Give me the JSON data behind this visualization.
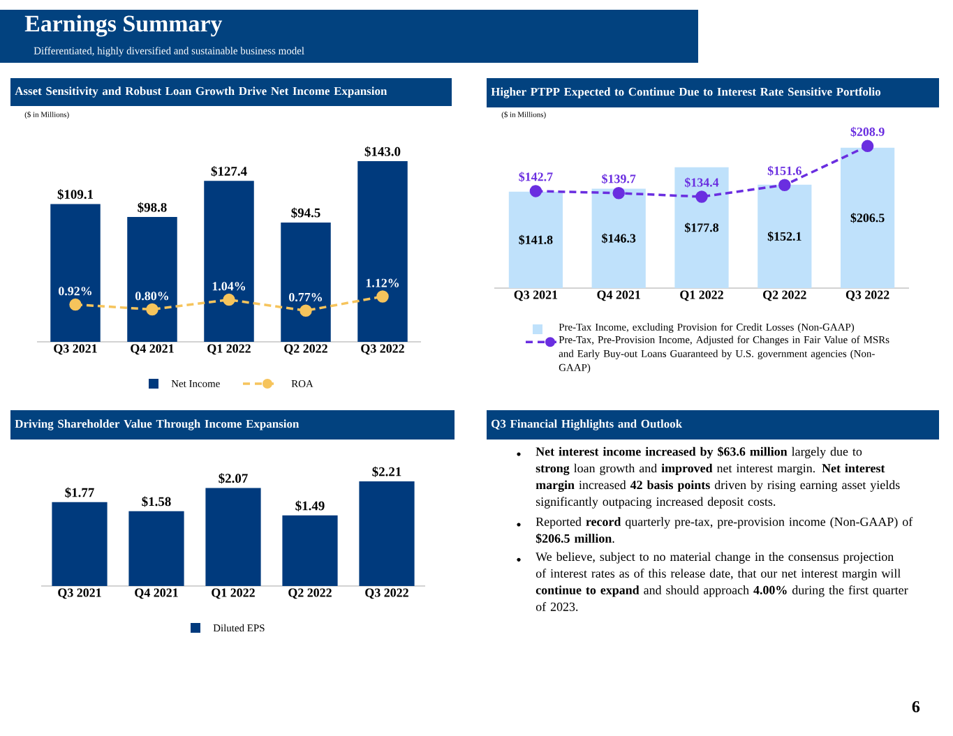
{
  "chart_data": [
    {
      "type": "other",
      "title": "Earnings Summary",
      "subtitle": "Differentiated, highly diversified and sustainable business model",
      "annotations": [
        "6"
      ]
    },
    {
      "type": "bar",
      "title": "Asset Sensitivity and Robust Loan Growth Drive Net Income Expansion",
      "subtitle": "($ in Millions)",
      "categories": [
        "Q3 2021",
        "Q4 2021",
        "Q1 2022",
        "Q2 2022",
        "Q3 2022"
      ],
      "series": [
        {
          "name": "Net Income",
          "color": "#003a7d",
          "values": [
            109.1,
            98.8,
            127.4,
            94.5,
            143.0
          ],
          "value_labels": [
            "$109.1",
            "$98.8",
            "$127.4",
            "$94.5",
            "$143.0"
          ]
        },
        {
          "name": "ROA",
          "type": "line",
          "axis": "y2",
          "color": "#f6c45c",
          "values": [
            0.92,
            0.8,
            1.04,
            0.77,
            1.12
          ],
          "value_labels": [
            "0.92%",
            "0.80%",
            "1.04%",
            "0.77%",
            "1.12%"
          ]
        }
      ],
      "tick_labels": "x",
      "legend": "bottom",
      "marker": "circle",
      "line_style": "dashed"
    },
    {
      "type": "bar",
      "title": "Higher PTPP Expected to Continue Due to Interest Rate Sensitive Portfolio",
      "subtitle": "($ in Millions)",
      "categories": [
        "Q3 2021",
        "Q4 2021",
        "Q1 2022",
        "Q2 2022",
        "Q3 2022"
      ],
      "series": [
        {
          "name": "Pre-Tax Income, excluding Provision for Credit Losses (Non-GAAP)",
          "color": "#bfe1fb",
          "values": [
            141.8,
            146.3,
            177.8,
            152.1,
            206.5
          ],
          "value_labels": [
            "$141.8",
            "$146.3",
            "$177.8",
            "$152.1",
            "$206.5"
          ]
        },
        {
          "name": "Pre-Tax, Pre-Provision Income, Adjusted for Changes in Fair Value of MSRs and Early Buy-out Loans Guaranteed by U.S. government agencies (Non-GAAP)",
          "type": "line",
          "color": "#6a2ee0",
          "values": [
            142.7,
            139.7,
            134.4,
            151.6,
            208.9
          ],
          "value_labels": [
            "$142.7",
            "$139.7",
            "$134.4",
            "$151.6",
            "$208.9"
          ]
        }
      ],
      "tick_labels": "x",
      "legend": "bottom",
      "marker": "circle",
      "line_style": "dashed"
    },
    {
      "type": "bar",
      "title": "Driving Shareholder Value Through Income Expansion",
      "categories": [
        "Q3 2021",
        "Q4 2021",
        "Q1 2022",
        "Q2 2022",
        "Q3 2022"
      ],
      "series": [
        {
          "name": "Diluted EPS",
          "color": "#003a7d",
          "values": [
            1.77,
            1.58,
            2.07,
            1.49,
            2.21
          ],
          "value_labels": [
            "$1.77",
            "$1.58",
            "$2.07",
            "$1.49",
            "$2.21"
          ]
        }
      ],
      "tick_labels": "x",
      "legend": "bottom"
    },
    {
      "type": "other",
      "title": "Q3 Financial Highlights and Outlook",
      "annotations": [
        "**Net interest income increased by $63.6 million** largely due to **strong** loan growth and **improved** net interest margin. **Net interest margin** increased **42 basis points** driven by rising earning asset yields significantly outpacing increased deposit costs.",
        "Reported **record** quarterly pre-tax, pre-provision income (Non-GAAP) of **$206.5 million**.",
        "We believe, subject to no material change in the consensus projection of interest rates as of this release date, that our net interest margin will **continue to expand** and should approach **4.00%** during the first quarter of 2023."
      ]
    }
  ]
}
